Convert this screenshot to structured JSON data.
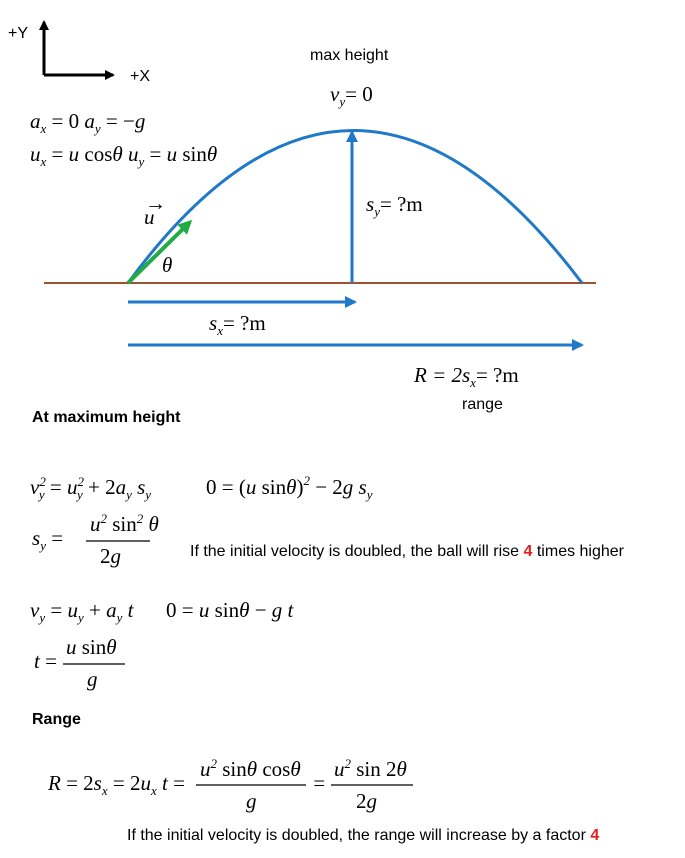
{
  "axes": {
    "y_label": "+Y",
    "x_label": "+X"
  },
  "diagram": {
    "max_height_label": "max height",
    "vy_top": "= 0",
    "theta": "θ",
    "u_vec": "u",
    "sy_label": "= ?m",
    "sx_label": "= ?m",
    "range_eq": "= ?m",
    "range_label": "range",
    "colors": {
      "trajectory": "#1f78c8",
      "ground": "#a0522d",
      "velocity": "#22aa44",
      "arrow": "#1f78c8"
    }
  },
  "given": {
    "accel": "a_x = 0   a_y = −g",
    "init": "u_x = u cosθ   u_y = u sinθ"
  },
  "sections": {
    "max_height_title": "At maximum height",
    "range_title": "Range"
  },
  "notes": {
    "height_note_pre": "If the initial velocity is doubled, the ball will rise",
    "height_factor": "4",
    "height_note_post": "times higher",
    "range_note_pre": "If the initial velocity is doubled, the range will increase by a factor",
    "range_factor": "4"
  }
}
